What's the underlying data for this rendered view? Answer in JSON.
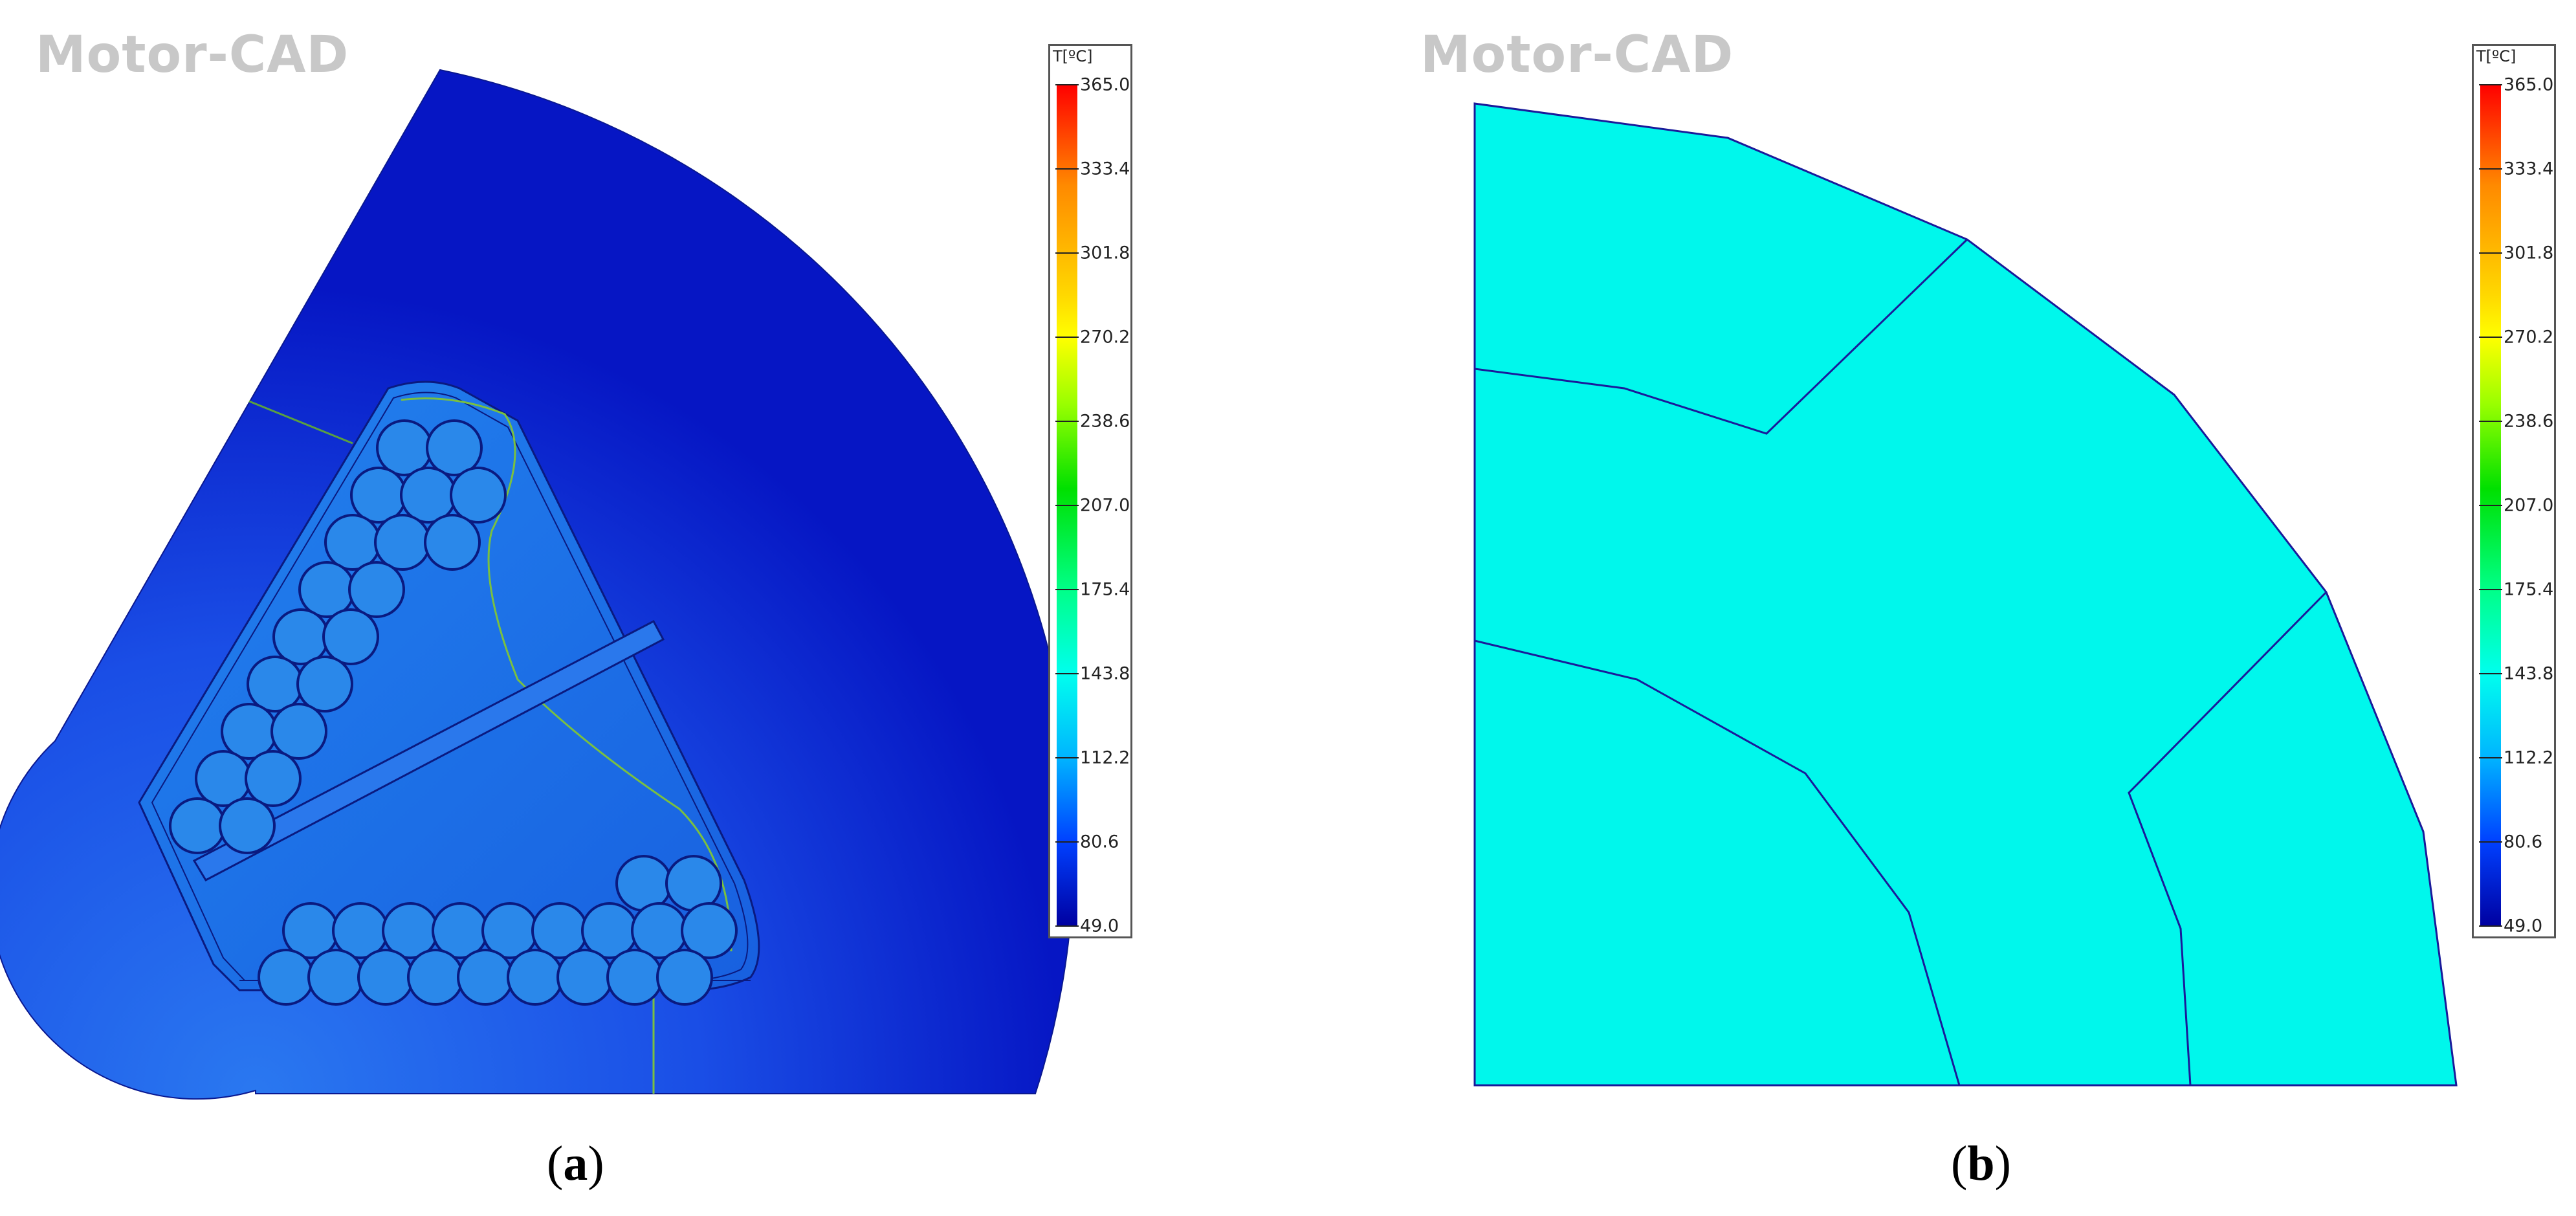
{
  "panels": [
    {
      "id": "a",
      "watermark": "Motor-CAD",
      "label": "a",
      "legend": {
        "title": "T[ºC]",
        "ticks": [
          "365.0",
          "333.4",
          "301.8",
          "270.2",
          "238.6",
          "207.0",
          "175.4",
          "143.8",
          "112.2",
          "80.6",
          "49.0"
        ]
      }
    },
    {
      "id": "b",
      "watermark": "Motor-CAD",
      "label": "b",
      "legend": {
        "title": "T[ºC]",
        "ticks": [
          "365.0",
          "333.4",
          "301.8",
          "270.2",
          "238.6",
          "207.0",
          "175.4",
          "143.8",
          "112.2",
          "80.6",
          "49.0"
        ]
      }
    }
  ],
  "colors": {
    "stator_iron": "#1840e0",
    "stator_outer": "#0820c8",
    "slot_fill": "#1e6ce8",
    "conductor": "#2a88ea",
    "conductor_stroke": "#0a1a80",
    "winding_block": "#00f5ea",
    "edge": "#1a1a9a"
  }
}
